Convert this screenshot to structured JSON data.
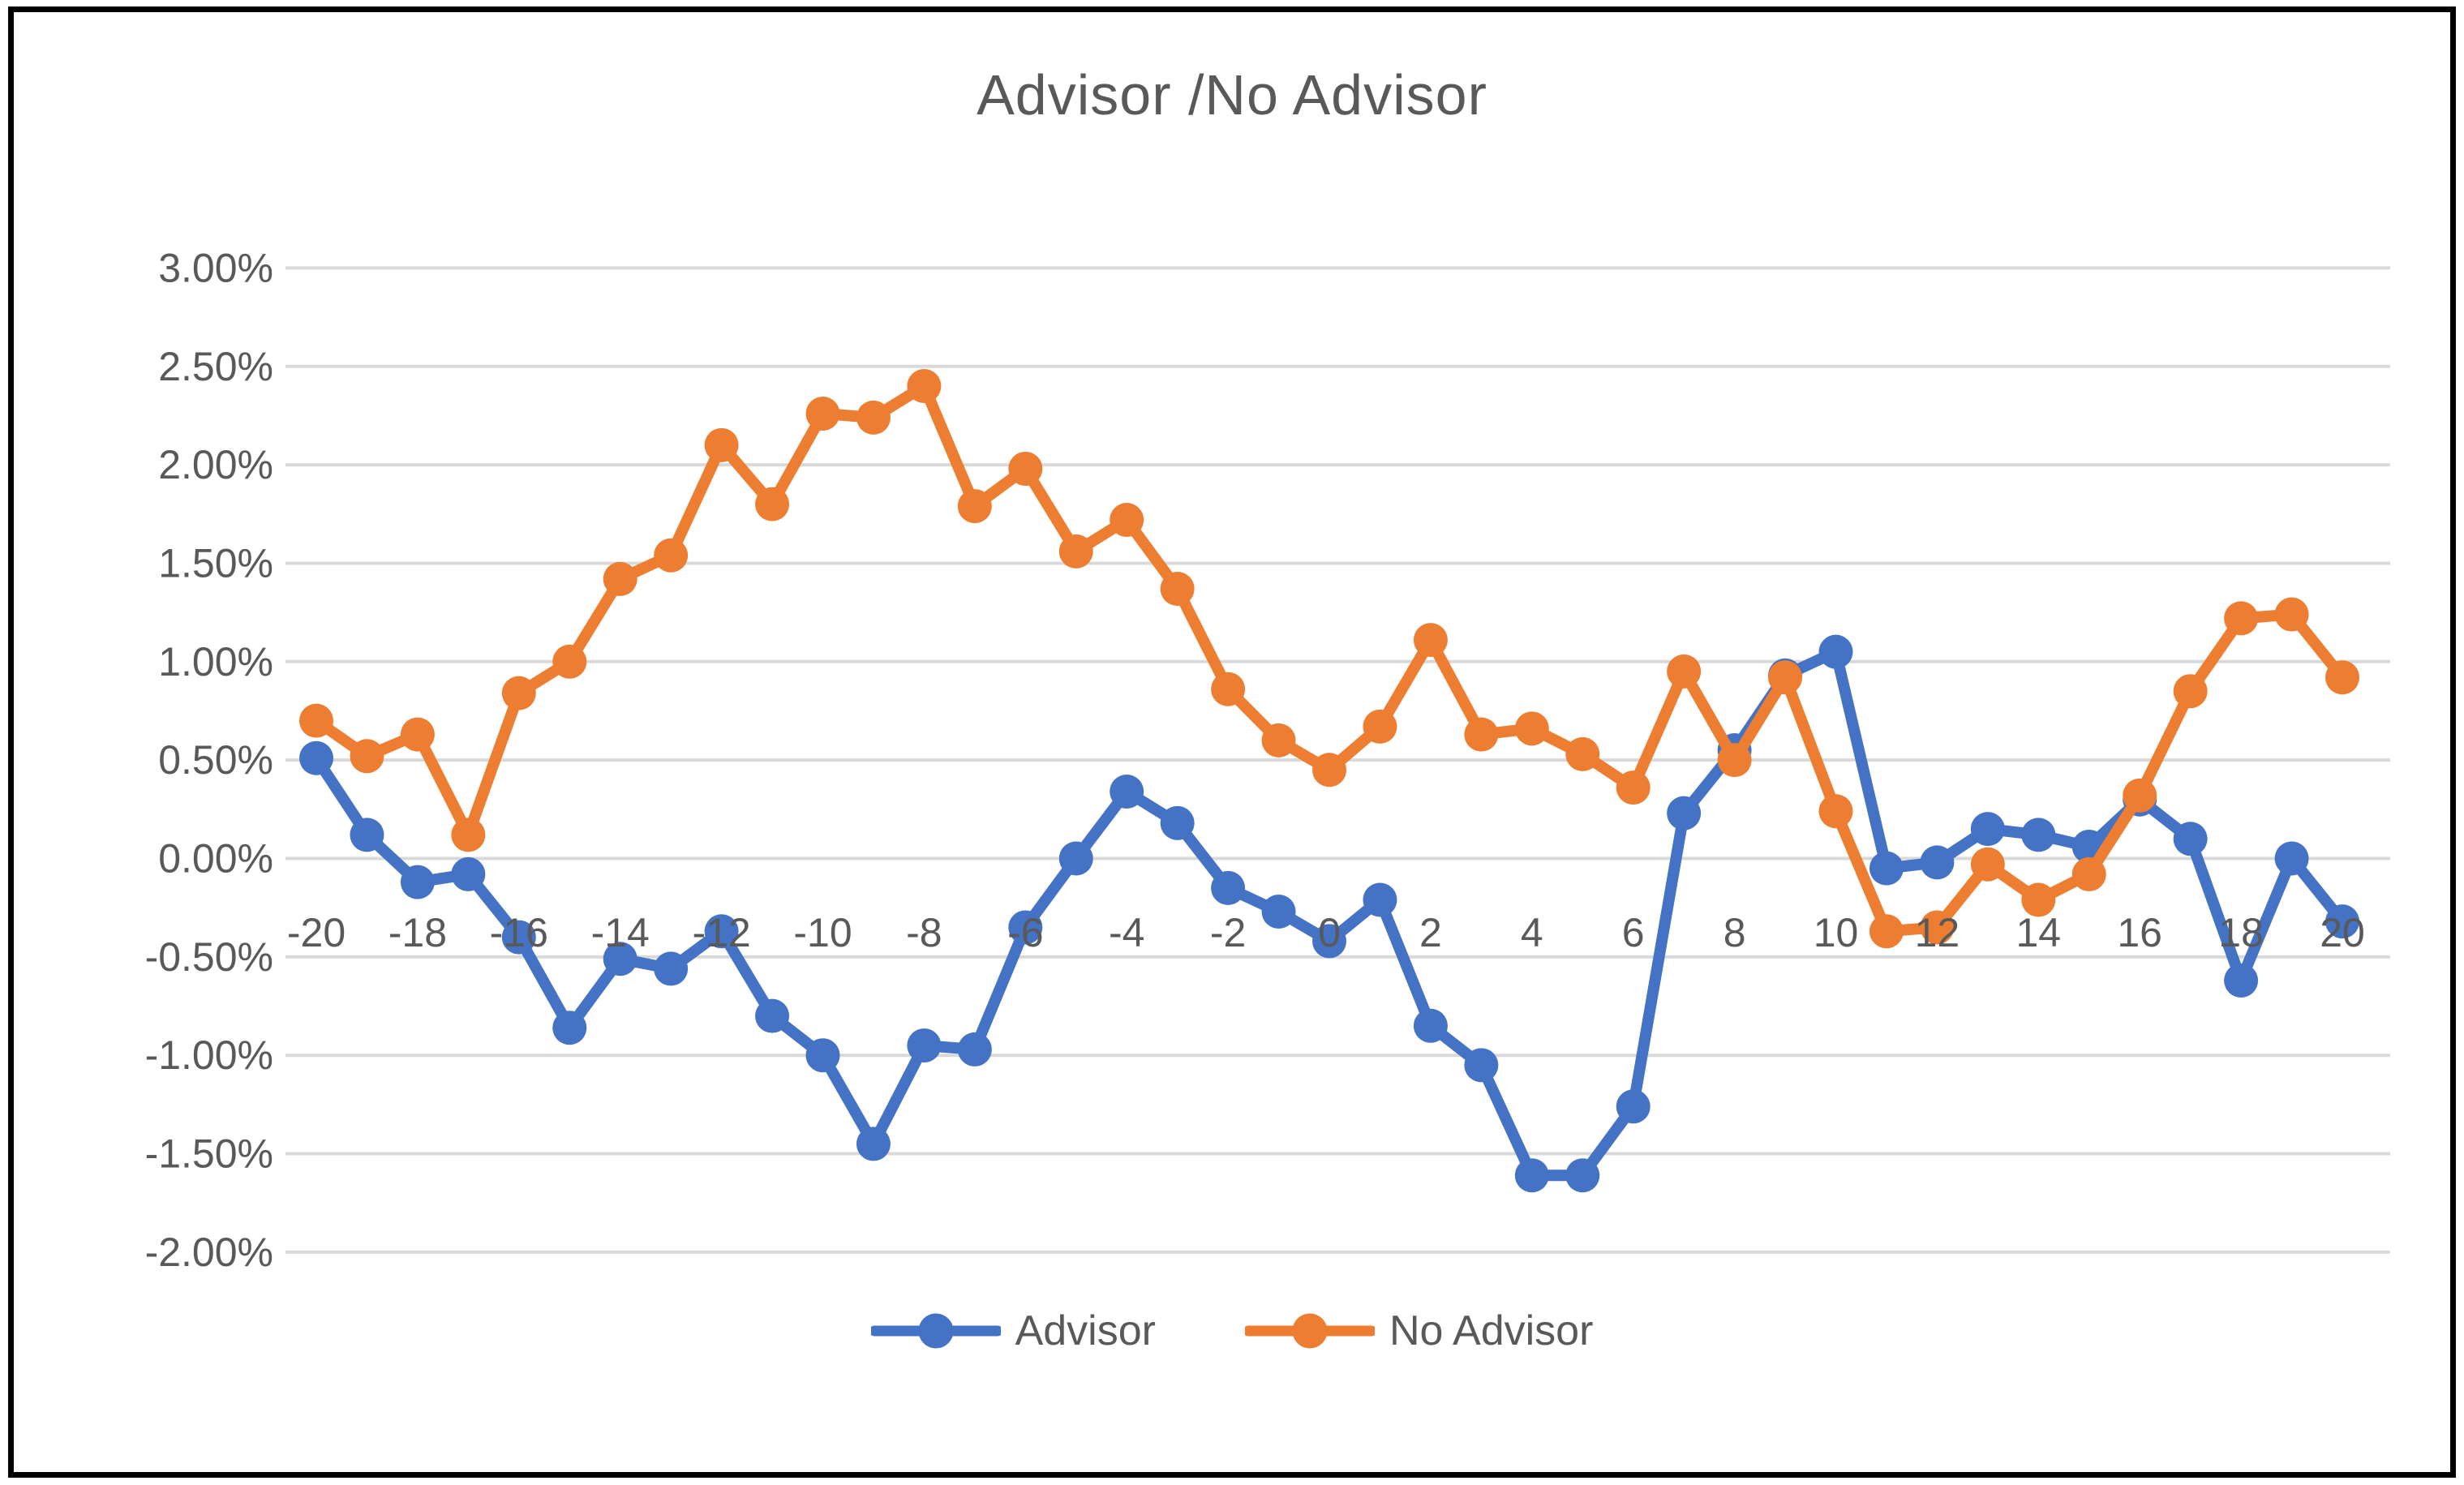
{
  "frame": {
    "border_color": "#000000",
    "background": "#ffffff"
  },
  "title": {
    "text": "Advisor /No Advisor",
    "color": "#595959"
  },
  "legend": {
    "items": [
      {
        "label": "Advisor",
        "color": "#4472C4"
      },
      {
        "label": "No Advisor",
        "color": "#ED7D31"
      }
    ]
  },
  "colors": {
    "advisor_line": "#4472C4",
    "no_advisor_line": "#ED7D31",
    "gridline": "#D9D9D9",
    "tick_text": "#595959"
  },
  "chart_data": {
    "type": "line",
    "title": "Advisor /No Advisor",
    "xlabel": "",
    "ylabel": "",
    "xlim": [
      -20,
      20
    ],
    "ylim": [
      -2.0,
      3.0
    ],
    "grid": "horizontal",
    "legend_position": "bottom",
    "x": [
      -20,
      -19,
      -18,
      -17,
      -16,
      -15,
      -14,
      -13,
      -12,
      -11,
      -10,
      -9,
      -8,
      -7,
      -6,
      -5,
      -4,
      -3,
      -2,
      -1,
      0,
      1,
      2,
      3,
      4,
      5,
      6,
      7,
      8,
      9,
      10,
      11,
      12,
      13,
      14,
      15,
      16,
      17,
      18,
      19,
      20
    ],
    "series": [
      {
        "name": "Advisor",
        "color": "#4472C4",
        "values": [
          0.51,
          0.12,
          -0.12,
          -0.08,
          -0.4,
          -0.86,
          -0.51,
          -0.56,
          -0.37,
          -0.8,
          -1.0,
          -1.45,
          -0.95,
          -0.97,
          -0.35,
          0.0,
          0.34,
          0.18,
          -0.15,
          -0.27,
          -0.42,
          -0.21,
          -0.85,
          -1.05,
          -1.61,
          -1.61,
          -1.26,
          0.23,
          0.55,
          0.93,
          1.05,
          -0.05,
          -0.02,
          0.15,
          0.12,
          0.06,
          0.3,
          0.1,
          -0.62,
          0.0,
          -0.32
        ]
      },
      {
        "name": "No Advisor",
        "color": "#ED7D31",
        "values": [
          0.7,
          0.52,
          0.63,
          0.12,
          0.84,
          1.0,
          1.42,
          1.54,
          2.1,
          1.8,
          2.26,
          2.24,
          2.4,
          1.79,
          1.98,
          1.56,
          1.72,
          1.37,
          0.86,
          0.6,
          0.45,
          0.67,
          1.11,
          0.63,
          0.66,
          0.53,
          0.36,
          0.95,
          0.5,
          0.92,
          0.24,
          -0.37,
          -0.35,
          -0.03,
          -0.21,
          -0.08,
          0.32,
          0.85,
          1.22,
          1.24,
          0.92
        ]
      }
    ],
    "y_ticks": [
      {
        "label": "3.00%",
        "value": 3.0
      },
      {
        "label": "2.50%",
        "value": 2.5
      },
      {
        "label": "2.00%",
        "value": 2.0
      },
      {
        "label": "1.50%",
        "value": 1.5
      },
      {
        "label": "1.00%",
        "value": 1.0
      },
      {
        "label": "0.50%",
        "value": 0.5
      },
      {
        "label": "0.00%",
        "value": 0.0
      },
      {
        "label": "-0.50%",
        "value": -0.5
      },
      {
        "label": "-1.00%",
        "value": -1.0
      },
      {
        "label": "-1.50%",
        "value": -1.5
      },
      {
        "label": "-2.00%",
        "value": -2.0
      }
    ],
    "x_ticks": [
      {
        "label": "-20",
        "value": -20
      },
      {
        "label": "-18",
        "value": -18
      },
      {
        "label": "-16",
        "value": -16
      },
      {
        "label": "-14",
        "value": -14
      },
      {
        "label": "-12",
        "value": -12
      },
      {
        "label": "-10",
        "value": -10
      },
      {
        "label": "-8",
        "value": -8
      },
      {
        "label": "-6",
        "value": -6
      },
      {
        "label": "-4",
        "value": -4
      },
      {
        "label": "-2",
        "value": -2
      },
      {
        "label": "0",
        "value": 0
      },
      {
        "label": "2",
        "value": 2
      },
      {
        "label": "4",
        "value": 4
      },
      {
        "label": "6",
        "value": 6
      },
      {
        "label": "8",
        "value": 8
      },
      {
        "label": "10",
        "value": 10
      },
      {
        "label": "12",
        "value": 12
      },
      {
        "label": "14",
        "value": 14
      },
      {
        "label": "16",
        "value": 16
      },
      {
        "label": "18",
        "value": 18
      },
      {
        "label": "20",
        "value": 20
      }
    ]
  }
}
